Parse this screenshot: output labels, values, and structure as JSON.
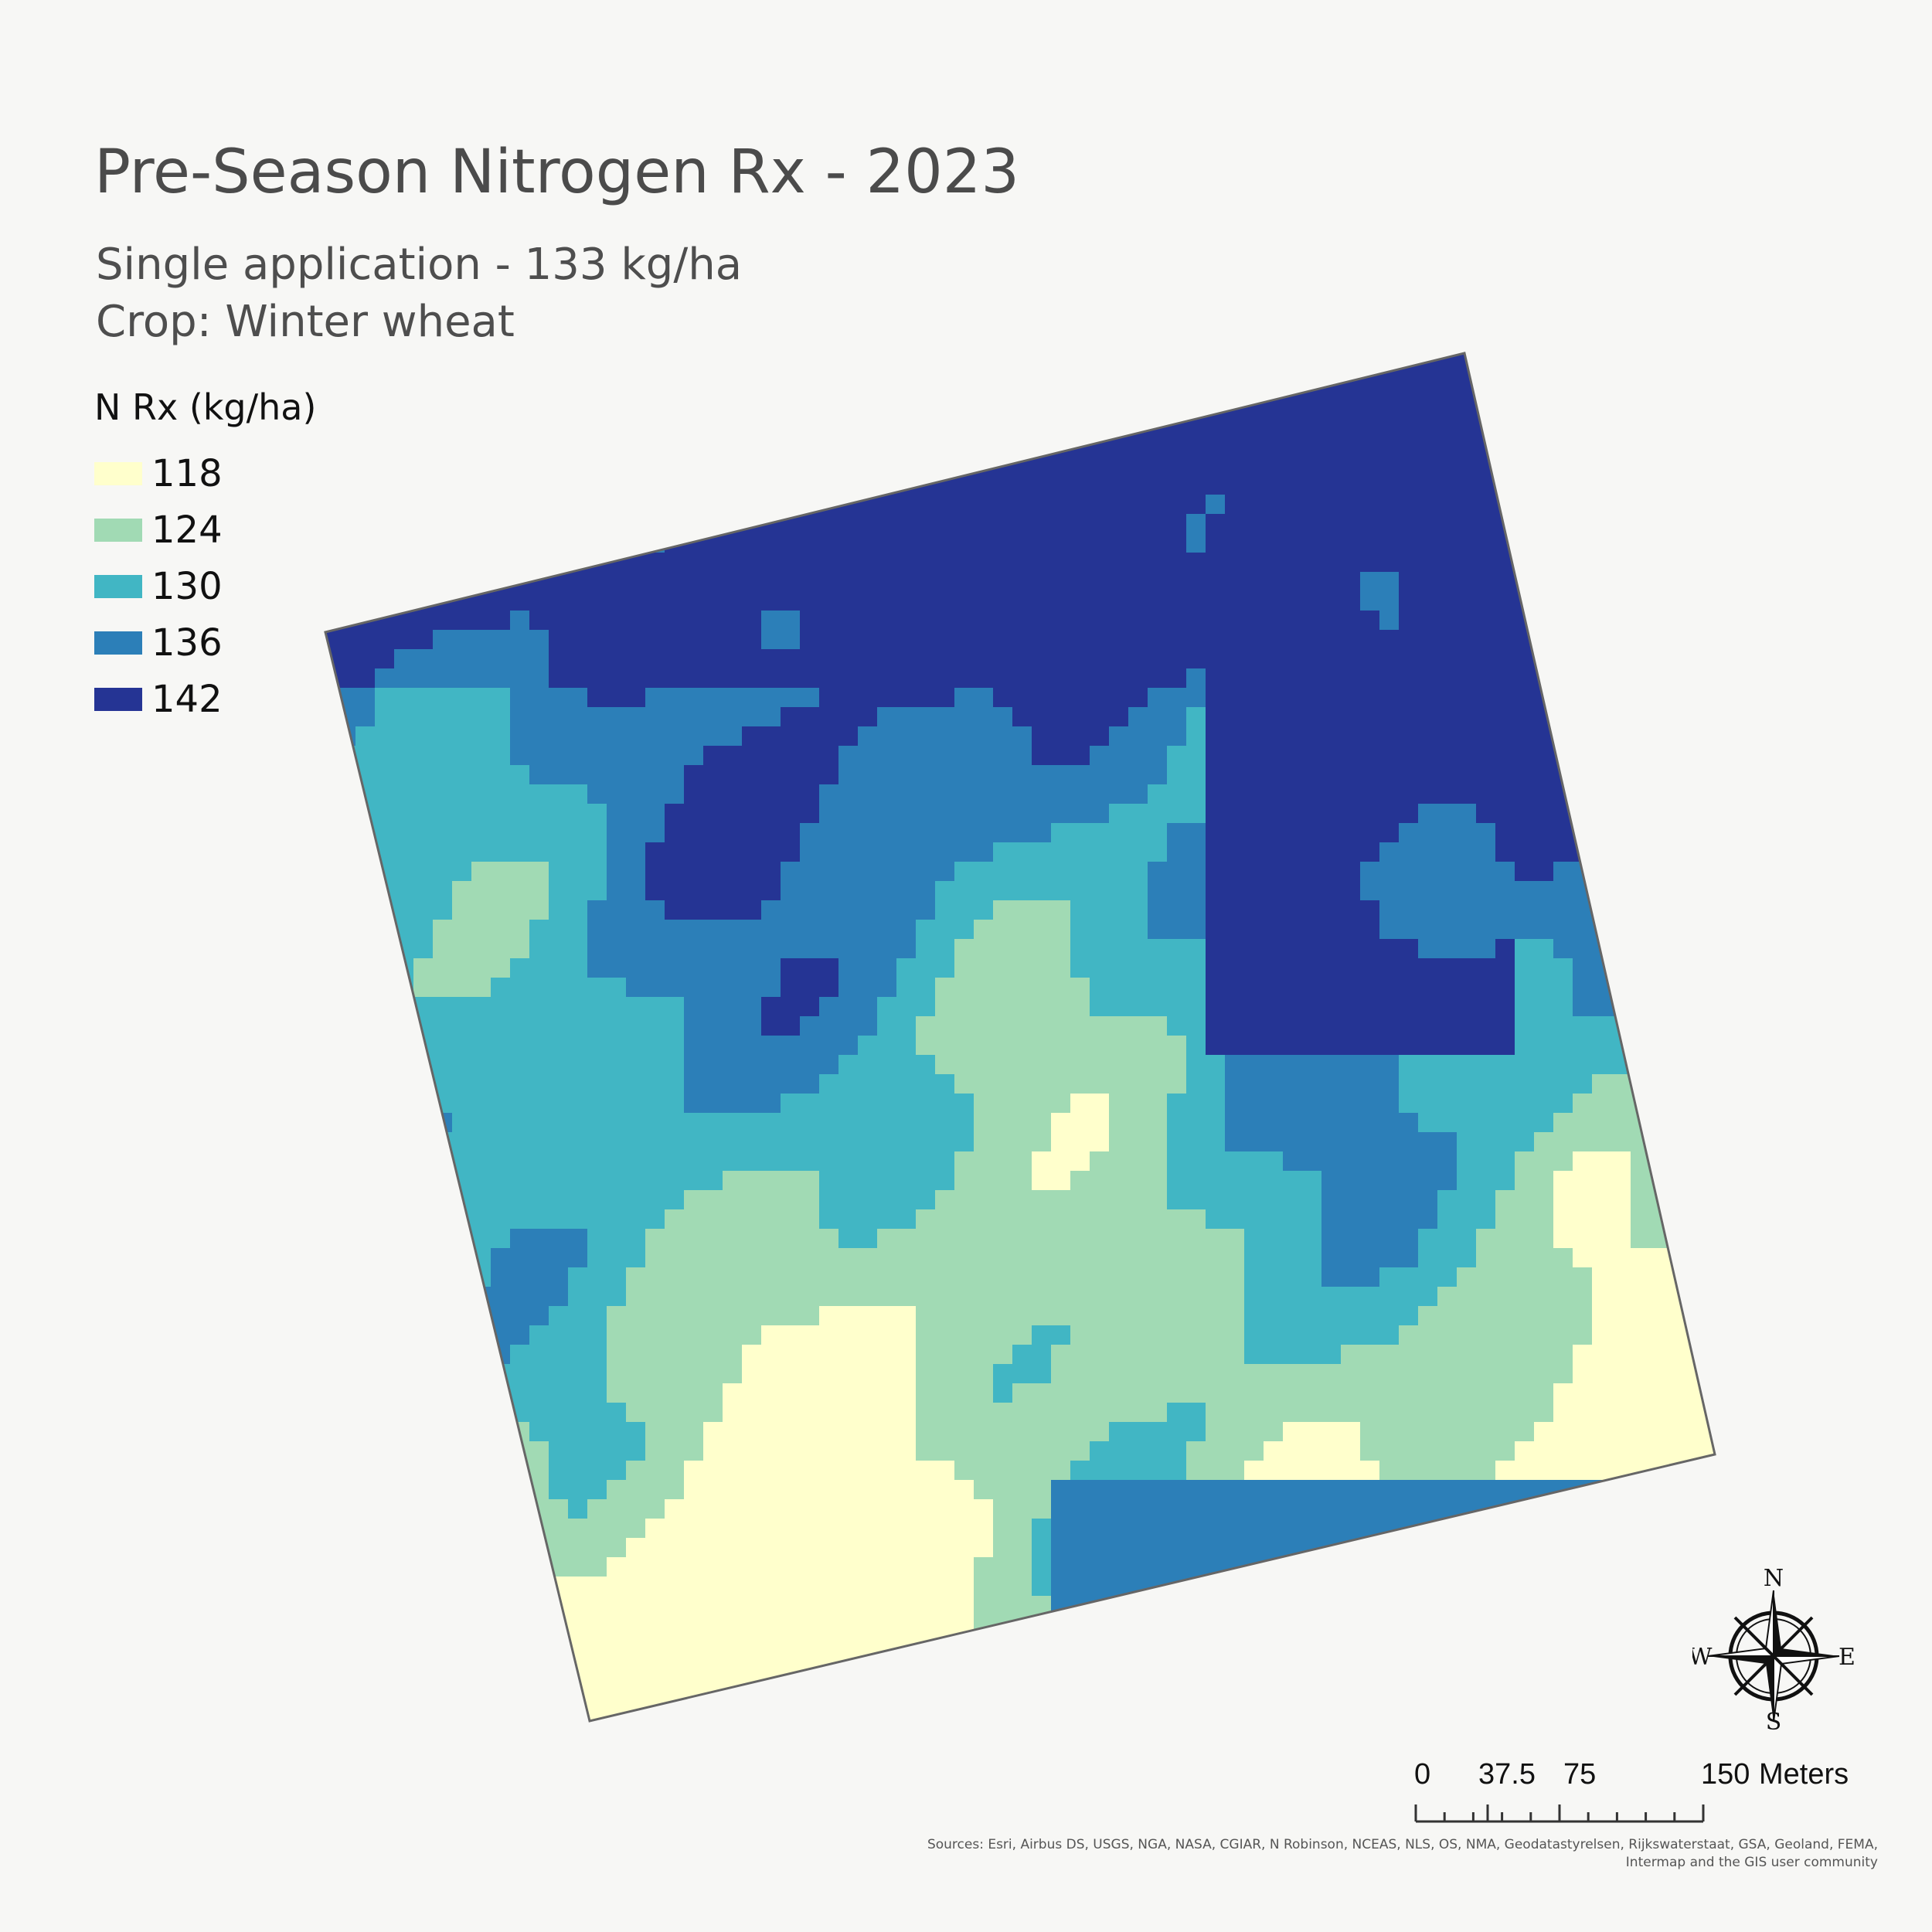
{
  "title": "Pre-Season Nitrogen Rx - 2023",
  "subtitle": "Single application - 133 kg/ha",
  "crop": "Crop: Winter wheat",
  "legend": {
    "title": "N Rx (kg/ha)",
    "items": [
      {
        "label": "118",
        "color": "#ffffcc"
      },
      {
        "label": "124",
        "color": "#a1dab4"
      },
      {
        "label": "130",
        "color": "#41b6c4"
      },
      {
        "label": "136",
        "color": "#2c7fb8"
      },
      {
        "label": "142",
        "color": "#253494"
      }
    ]
  },
  "north_arrow": {
    "n": "N",
    "e": "E",
    "s": "S",
    "w": "W",
    "icon": "compass-rose-icon"
  },
  "scalebar": {
    "labels": [
      "0",
      "37.5",
      "75",
      "150"
    ],
    "unit": "Meters"
  },
  "sources": "Sources: Esri, Airbus DS, USGS, NGA, NASA, CGIAR, N Robinson, NCEAS, NLS, OS, NMA, Geodatastyrelsen, Rijkswaterstaat, GSA, Geoland, FEMA, Intermap and the GIS user community"
}
